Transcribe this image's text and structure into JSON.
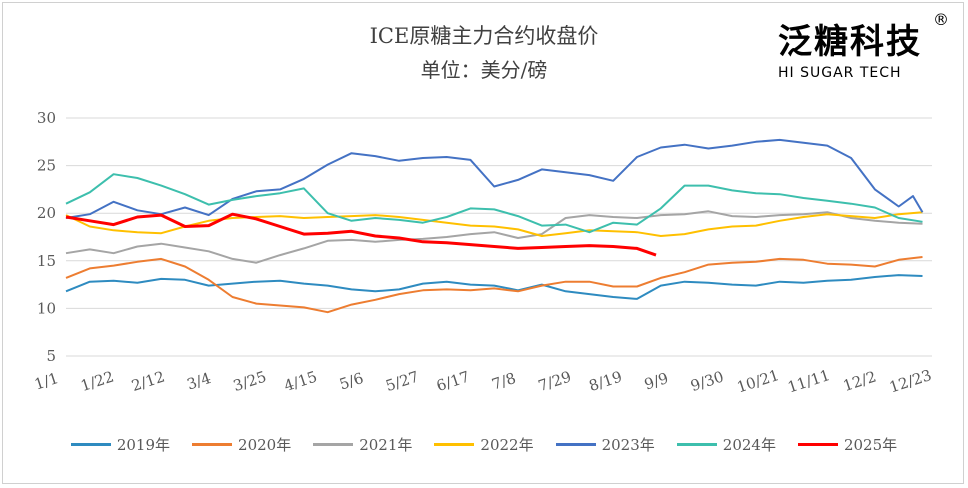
{
  "header": {
    "title": "ICE原糖主力合约收盘价",
    "subtitle": "单位：美分/磅"
  },
  "logo": {
    "cn": "泛糖科技",
    "en": "HI SUGAR TECH",
    "reg": "®"
  },
  "chart_data": {
    "type": "line",
    "title": "ICE原糖主力合约收盘价",
    "ylabel": "单位：美分/磅",
    "ylim": [
      5,
      30
    ],
    "yticks": [
      5,
      10,
      15,
      20,
      25,
      30
    ],
    "xtick_labels": [
      "1/1",
      "1/22",
      "2/12",
      "3/4",
      "3/25",
      "4/15",
      "5/6",
      "5/27",
      "6/17",
      "7/8",
      "7/29",
      "8/19",
      "9/9",
      "9/30",
      "10/21",
      "11/11",
      "12/2",
      "12/23"
    ],
    "grid": "horizontal",
    "legend_position": "bottom",
    "series": [
      {
        "name": "2019年",
        "color": "#2e8bc0",
        "x": [
          0,
          10,
          20,
          30,
          40,
          50,
          60,
          70,
          80,
          90,
          100,
          110,
          120,
          130,
          140,
          150,
          160,
          170,
          180,
          190,
          200,
          210,
          220,
          230,
          240,
          250,
          260,
          270,
          280,
          290,
          300,
          310,
          320,
          330,
          340,
          350,
          360
        ],
        "y": [
          11.8,
          12.8,
          12.9,
          12.7,
          13.1,
          13.0,
          12.4,
          12.6,
          12.8,
          12.9,
          12.6,
          12.4,
          12.0,
          11.8,
          12.0,
          12.6,
          12.8,
          12.5,
          12.4,
          11.9,
          12.5,
          11.8,
          11.5,
          11.2,
          11.0,
          12.4,
          12.8,
          12.7,
          12.5,
          12.4,
          12.8,
          12.7,
          12.9,
          13.0,
          13.3,
          13.5,
          13.4
        ]
      },
      {
        "name": "2020年",
        "color": "#ed7d31",
        "x": [
          0,
          10,
          20,
          30,
          40,
          50,
          60,
          70,
          80,
          90,
          100,
          110,
          120,
          130,
          140,
          150,
          160,
          170,
          180,
          190,
          200,
          210,
          220,
          230,
          240,
          250,
          260,
          270,
          280,
          290,
          300,
          310,
          320,
          330,
          340,
          350,
          360
        ],
        "y": [
          13.2,
          14.2,
          14.5,
          14.9,
          15.2,
          14.4,
          13.0,
          11.2,
          10.5,
          10.3,
          10.1,
          9.6,
          10.4,
          10.9,
          11.5,
          11.9,
          12.0,
          11.9,
          12.1,
          11.8,
          12.4,
          12.8,
          12.8,
          12.3,
          12.3,
          13.2,
          13.8,
          14.6,
          14.8,
          14.9,
          15.2,
          15.1,
          14.7,
          14.6,
          14.4,
          15.1,
          15.4
        ]
      },
      {
        "name": "2021年",
        "color": "#a5a5a5",
        "x": [
          0,
          10,
          20,
          30,
          40,
          50,
          60,
          70,
          80,
          90,
          100,
          110,
          120,
          130,
          140,
          150,
          160,
          170,
          180,
          190,
          200,
          210,
          220,
          230,
          240,
          250,
          260,
          270,
          280,
          290,
          300,
          310,
          320,
          330,
          340,
          350,
          360
        ],
        "y": [
          15.8,
          16.2,
          15.8,
          16.5,
          16.8,
          16.4,
          16.0,
          15.2,
          14.8,
          15.6,
          16.3,
          17.1,
          17.2,
          17.0,
          17.2,
          17.3,
          17.5,
          17.8,
          18.0,
          17.4,
          17.8,
          19.5,
          19.8,
          19.6,
          19.5,
          19.8,
          19.9,
          20.2,
          19.7,
          19.6,
          19.8,
          19.9,
          20.1,
          19.5,
          19.2,
          19.0,
          18.9
        ]
      },
      {
        "name": "2022年",
        "color": "#ffc000",
        "x": [
          0,
          10,
          20,
          30,
          40,
          50,
          60,
          70,
          80,
          90,
          100,
          110,
          120,
          130,
          140,
          150,
          160,
          170,
          180,
          190,
          200,
          210,
          220,
          230,
          240,
          250,
          260,
          270,
          280,
          290,
          300,
          310,
          320,
          330,
          340,
          350,
          360
        ],
        "y": [
          19.8,
          18.6,
          18.2,
          18.0,
          17.9,
          18.6,
          19.2,
          19.5,
          19.6,
          19.7,
          19.5,
          19.6,
          19.7,
          19.8,
          19.6,
          19.3,
          19.0,
          18.7,
          18.6,
          18.3,
          17.6,
          17.9,
          18.2,
          18.1,
          18.0,
          17.6,
          17.8,
          18.3,
          18.6,
          18.7,
          19.2,
          19.6,
          19.9,
          19.7,
          19.5,
          19.9,
          20.1
        ]
      },
      {
        "name": "2023年",
        "color": "#4472c4",
        "x": [
          0,
          10,
          20,
          30,
          40,
          50,
          60,
          70,
          80,
          90,
          100,
          110,
          120,
          130,
          140,
          150,
          160,
          170,
          180,
          190,
          200,
          210,
          220,
          230,
          240,
          250,
          260,
          270,
          280,
          290,
          300,
          310,
          320,
          330,
          340,
          350,
          356,
          360
        ],
        "y": [
          19.5,
          19.9,
          21.2,
          20.3,
          19.9,
          20.6,
          19.8,
          21.5,
          22.3,
          22.5,
          23.6,
          25.1,
          26.3,
          26.0,
          25.5,
          25.8,
          25.9,
          25.6,
          22.8,
          23.5,
          24.6,
          24.3,
          24.0,
          23.4,
          25.9,
          26.9,
          27.2,
          26.8,
          27.1,
          27.5,
          27.7,
          27.4,
          27.1,
          25.8,
          22.5,
          20.7,
          21.8,
          20.1
        ]
      },
      {
        "name": "2024年",
        "color": "#3dbfad",
        "x": [
          0,
          10,
          20,
          30,
          40,
          50,
          60,
          70,
          80,
          90,
          100,
          110,
          120,
          130,
          140,
          150,
          160,
          170,
          180,
          190,
          200,
          210,
          220,
          230,
          240,
          250,
          260,
          270,
          280,
          290,
          300,
          310,
          320,
          330,
          340,
          350,
          360
        ],
        "y": [
          21.0,
          22.2,
          24.1,
          23.7,
          22.9,
          22.0,
          20.9,
          21.4,
          21.8,
          22.1,
          22.6,
          20.0,
          19.2,
          19.5,
          19.3,
          19.0,
          19.6,
          20.5,
          20.4,
          19.7,
          18.7,
          18.8,
          18.0,
          19.0,
          18.8,
          20.5,
          22.9,
          22.9,
          22.4,
          22.1,
          22.0,
          21.6,
          21.3,
          21.0,
          20.6,
          19.5,
          19.1
        ]
      },
      {
        "name": "2025年",
        "color": "#ff0000",
        "x": [
          0,
          10,
          20,
          30,
          40,
          50,
          60,
          70,
          80,
          90,
          100,
          110,
          120,
          130,
          140,
          150,
          160,
          170,
          180,
          190,
          200,
          210,
          220,
          230,
          240,
          248
        ],
        "y": [
          19.6,
          19.2,
          18.8,
          19.6,
          19.8,
          18.6,
          18.7,
          19.9,
          19.4,
          18.6,
          17.8,
          17.9,
          18.1,
          17.6,
          17.4,
          17.0,
          16.9,
          16.7,
          16.5,
          16.3,
          16.4,
          16.5,
          16.6,
          16.5,
          16.3,
          15.6
        ]
      }
    ]
  }
}
